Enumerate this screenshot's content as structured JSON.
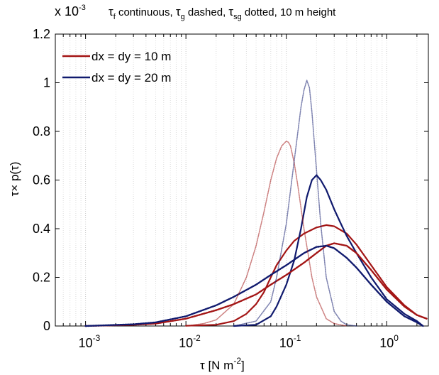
{
  "chart_data": {
    "type": "line",
    "title_parts": {
      "tau": "τ",
      "sub_f": "f",
      "t1": " continuous, ",
      "sub_g": "g",
      "t2": " dashed, ",
      "sub_sg": "sg",
      "t3": " dotted, 10 m height"
    },
    "xlabel": {
      "main": "τ [N m",
      "sup": "-2",
      "close": "]"
    },
    "ylabel": "τ× p(τ)",
    "y_multiplier": {
      "prefix": "x 10",
      "exp": "-3"
    },
    "x_scale": "log",
    "xlim": [
      0.0005,
      2.6
    ],
    "ylim": [
      0,
      1.2
    ],
    "grid": {
      "x_major": true,
      "x_minor": true,
      "y": false
    },
    "legend_position": "top-left",
    "x_ticks": [
      {
        "value": 0.001,
        "base": "10",
        "exp": "-3"
      },
      {
        "value": 0.01,
        "base": "10",
        "exp": "-2"
      },
      {
        "value": 0.1,
        "base": "10",
        "exp": "-1"
      },
      {
        "value": 1,
        "base": "10",
        "exp": "0"
      }
    ],
    "y_ticks": [
      {
        "value": 0,
        "label": "0"
      },
      {
        "value": 0.2,
        "label": "0.2"
      },
      {
        "value": 0.4,
        "label": "0.4"
      },
      {
        "value": 0.6,
        "label": "0.6"
      },
      {
        "value": 0.8,
        "label": "0.8"
      },
      {
        "value": 1.0,
        "label": "1"
      },
      {
        "value": 1.2,
        "label": "1.2"
      }
    ],
    "legend": [
      {
        "label": "dx = dy = 10 m",
        "color": "#a31515"
      },
      {
        "label": "dx = dy = 20 m",
        "color": "#101a6e"
      }
    ],
    "series": [
      {
        "name": "dx = dy = 10 m",
        "variable": "τf",
        "line_style": "solid",
        "color": "#a31515",
        "x": [
          0.01,
          0.02,
          0.03,
          0.04,
          0.05,
          0.06,
          0.07,
          0.08,
          0.1,
          0.12,
          0.15,
          0.2,
          0.25,
          0.3,
          0.4,
          0.5,
          0.7,
          1.0,
          1.5,
          2.0,
          2.5
        ],
        "y": [
          0.001,
          0.005,
          0.02,
          0.05,
          0.09,
          0.14,
          0.2,
          0.25,
          0.31,
          0.35,
          0.38,
          0.405,
          0.415,
          0.41,
          0.38,
          0.335,
          0.25,
          0.16,
          0.085,
          0.045,
          0.03
        ]
      },
      {
        "name": "dx = dy = 20 m",
        "variable": "τf",
        "line_style": "solid",
        "color": "#101a6e",
        "x": [
          0.03,
          0.05,
          0.07,
          0.08,
          0.1,
          0.12,
          0.14,
          0.16,
          0.18,
          0.2,
          0.22,
          0.25,
          0.3,
          0.35,
          0.4,
          0.5,
          0.7,
          1.0,
          1.5,
          2.0,
          2.3
        ],
        "y": [
          0.0,
          0.005,
          0.04,
          0.08,
          0.17,
          0.27,
          0.4,
          0.53,
          0.6,
          0.62,
          0.6,
          0.56,
          0.48,
          0.42,
          0.37,
          0.3,
          0.2,
          0.11,
          0.05,
          0.02,
          0.0
        ]
      },
      {
        "name": "dx = dy = 10 m",
        "variable": "τg",
        "line_style": "dashed",
        "color": "#a31515",
        "x": [
          0.001,
          0.003,
          0.005,
          0.01,
          0.02,
          0.03,
          0.05,
          0.07,
          0.1,
          0.15,
          0.2,
          0.25,
          0.3,
          0.4,
          0.5,
          0.7,
          1.0,
          1.5,
          2.0,
          2.5
        ],
        "y": [
          0.0,
          0.005,
          0.01,
          0.03,
          0.065,
          0.09,
          0.13,
          0.17,
          0.21,
          0.26,
          0.3,
          0.33,
          0.34,
          0.33,
          0.3,
          0.23,
          0.15,
          0.08,
          0.045,
          0.03
        ]
      },
      {
        "name": "dx = dy = 20 m",
        "variable": "τg",
        "line_style": "dashed",
        "color": "#101a6e",
        "x": [
          0.001,
          0.003,
          0.005,
          0.01,
          0.02,
          0.03,
          0.05,
          0.07,
          0.1,
          0.15,
          0.2,
          0.25,
          0.3,
          0.4,
          0.5,
          0.7,
          1.0,
          1.5,
          2.0,
          2.3
        ],
        "y": [
          0.0,
          0.007,
          0.015,
          0.04,
          0.085,
          0.12,
          0.17,
          0.21,
          0.25,
          0.3,
          0.325,
          0.33,
          0.32,
          0.28,
          0.24,
          0.17,
          0.1,
          0.04,
          0.015,
          0.0
        ]
      },
      {
        "name": "dx = dy = 10 m",
        "variable": "τsg",
        "line_style": "dotted",
        "color": "#a31515",
        "x": [
          0.01,
          0.015,
          0.02,
          0.03,
          0.04,
          0.05,
          0.06,
          0.07,
          0.08,
          0.09,
          0.1,
          0.105,
          0.11,
          0.12,
          0.13,
          0.15,
          0.18,
          0.2,
          0.25,
          0.3,
          0.4
        ],
        "y": [
          0.0,
          0.01,
          0.025,
          0.09,
          0.2,
          0.33,
          0.47,
          0.6,
          0.69,
          0.74,
          0.76,
          0.755,
          0.74,
          0.67,
          0.58,
          0.4,
          0.2,
          0.12,
          0.03,
          0.01,
          0.0
        ]
      },
      {
        "name": "dx = dy = 20 m",
        "variable": "τsg",
        "line_style": "dotted",
        "color": "#101a6e",
        "x": [
          0.03,
          0.05,
          0.07,
          0.08,
          0.1,
          0.12,
          0.14,
          0.15,
          0.16,
          0.17,
          0.18,
          0.2,
          0.22,
          0.25,
          0.3,
          0.35,
          0.4,
          0.5
        ],
        "y": [
          0.0,
          0.02,
          0.1,
          0.2,
          0.42,
          0.68,
          0.9,
          0.97,
          1.01,
          0.98,
          0.88,
          0.64,
          0.42,
          0.2,
          0.06,
          0.02,
          0.005,
          0.0
        ]
      }
    ]
  }
}
